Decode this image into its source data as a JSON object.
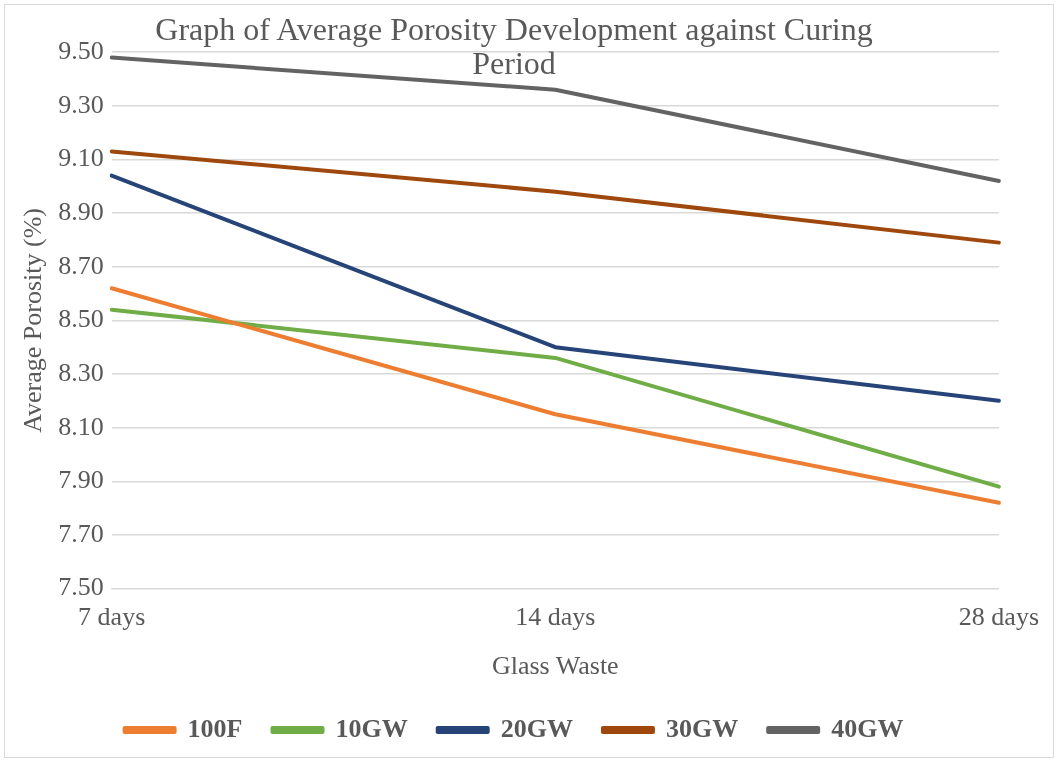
{
  "chart_data": {
    "type": "line",
    "title": "Graph of Average Porosity Development against Curing Period",
    "xlabel": "Glass Waste",
    "ylabel": "Average Porosity (%)",
    "categories": [
      "7 days",
      "14 days",
      "28 days"
    ],
    "series": [
      {
        "name": "100F",
        "color": "#ed7d31",
        "values": [
          8.62,
          8.15,
          7.82
        ]
      },
      {
        "name": "10GW",
        "color": "#70ad47",
        "values": [
          8.54,
          8.36,
          7.88
        ]
      },
      {
        "name": "20GW",
        "color": "#264478",
        "values": [
          9.04,
          8.4,
          8.2
        ]
      },
      {
        "name": "30GW",
        "color": "#9e480e",
        "values": [
          9.13,
          8.98,
          8.79
        ]
      },
      {
        "name": "40GW",
        "color": "#636363",
        "values": [
          9.48,
          9.36,
          9.02
        ]
      }
    ],
    "ylim": [
      7.5,
      9.5
    ],
    "yticks": [
      {
        "value": 7.5,
        "label": "7.50"
      },
      {
        "value": 7.7,
        "label": "7.70"
      },
      {
        "value": 7.9,
        "label": "7.90"
      },
      {
        "value": 8.1,
        "label": "8.10"
      },
      {
        "value": 8.3,
        "label": "8.30"
      },
      {
        "value": 8.5,
        "label": "8.50"
      },
      {
        "value": 8.7,
        "label": "8.70"
      },
      {
        "value": 8.9,
        "label": "8.90"
      },
      {
        "value": 9.1,
        "label": "9.10"
      },
      {
        "value": 9.3,
        "label": "9.30"
      },
      {
        "value": 9.5,
        "label": "9.50"
      }
    ],
    "grid": "y",
    "legend": "bottom",
    "marker": "none",
    "line_style": "solid"
  }
}
